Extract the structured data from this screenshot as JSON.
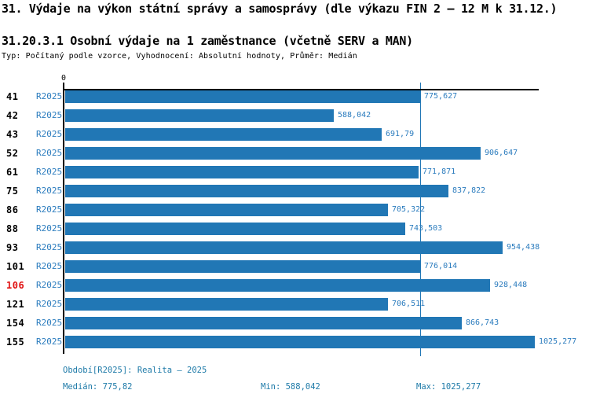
{
  "title": "31. Výdaje na výkon státní správy a samosprávy (dle výkazu FIN 2 – 12 M k 31.12.)",
  "subtitle": "31.20.3.1 Osobní výdaje na 1 zaměstnance (včetně SERV a MAN)",
  "meta_line": "Typ: Počítaný podle vzorce, Vyhodnocení: Absolutní hodnoty, Průměr: Medián",
  "colors": {
    "bar_blue": "#2177B5",
    "text_blue": "#2B7CBE",
    "footer_teal": "#1E7AA8",
    "highlight_red": "#E01010",
    "axis_black": "#000000",
    "background": "#FFFFFF"
  },
  "axis": {
    "origin_label": "0"
  },
  "chart_data": {
    "type": "bar",
    "orientation": "horizontal",
    "title": "31.20.3.1 Osobní výdaje na 1 zaměstnance (včetně SERV a MAN)",
    "categories": [
      "41",
      "42",
      "43",
      "52",
      "61",
      "75",
      "86",
      "88",
      "93",
      "101",
      "106",
      "121",
      "154",
      "155"
    ],
    "series_label": "R2025",
    "values": [
      775.627,
      588.042,
      691.79,
      906.647,
      771.871,
      837.822,
      705.322,
      743.503,
      954.438,
      776.014,
      928.448,
      706.511,
      866.743,
      1025.277
    ],
    "value_labels": [
      "775,627",
      "588,042",
      "691,79",
      "906,647",
      "771,871",
      "837,822",
      "705,322",
      "743,503",
      "954,438",
      "776,014",
      "928,448",
      "706,511",
      "866,743",
      "1025,277"
    ],
    "highlighted_category": "106",
    "median": 775.82,
    "min": 588.042,
    "max": 1025.277,
    "xlim": [
      0,
      1025.277
    ],
    "grid": false,
    "legend": false
  },
  "footer": {
    "period": "Období[R2025]: Realita – 2025",
    "median": "Medián: 775,82",
    "min": "Min: 588,042",
    "max": "Max: 1025,277"
  }
}
